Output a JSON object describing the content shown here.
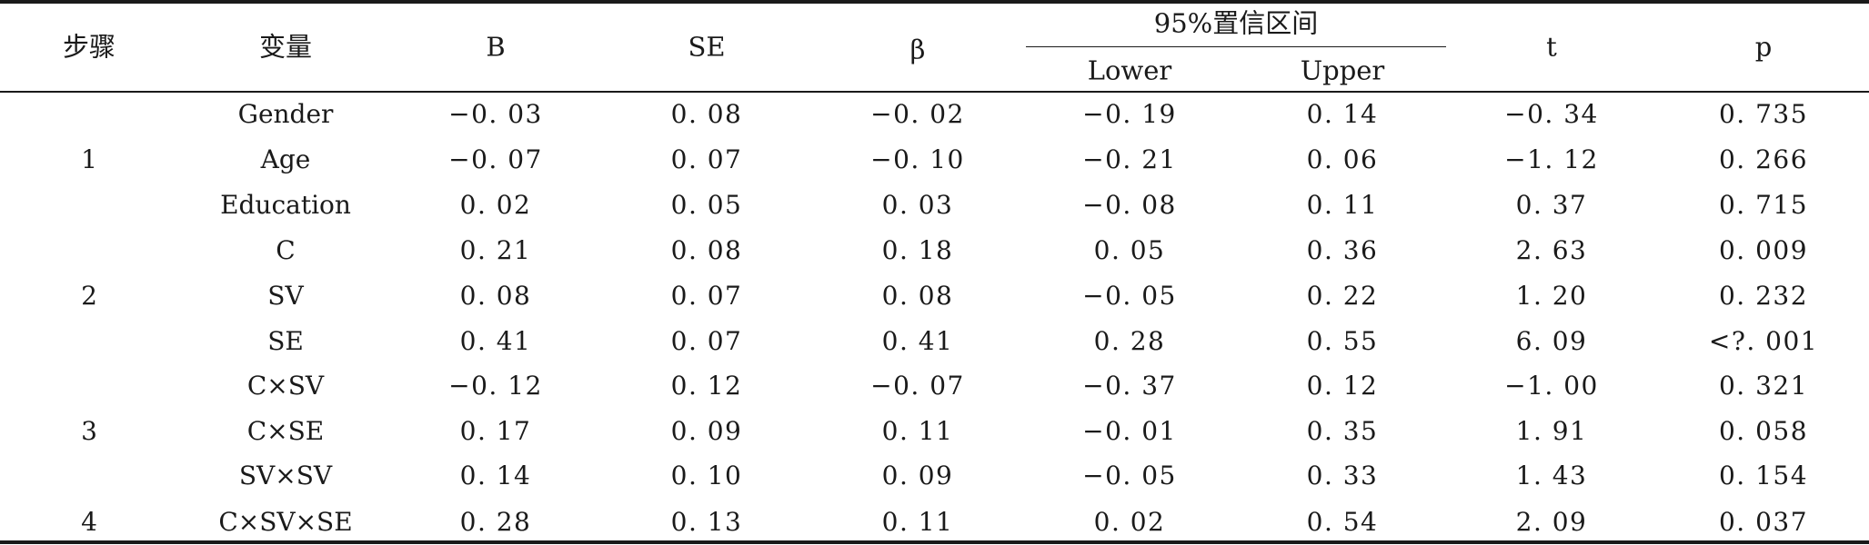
{
  "table": {
    "headers": {
      "step": "步骤",
      "variable": "变量",
      "B": "B",
      "SE": "SE",
      "beta": "β",
      "ci_group": "95%置信区间",
      "lower": "Lower",
      "upper": "Upper",
      "t": "t",
      "p": "p"
    },
    "steps": [
      {
        "label": "1"
      },
      {
        "label": "2"
      },
      {
        "label": "3"
      },
      {
        "label": "4"
      }
    ],
    "rows": [
      {
        "variable": "Gender",
        "B": "−0. 03",
        "SE": "0. 08",
        "beta": "−0. 02",
        "lower": "−0. 19",
        "upper": "0. 14",
        "t": "−0. 34",
        "p": "0. 735"
      },
      {
        "variable": "Age",
        "B": "−0. 07",
        "SE": "0. 07",
        "beta": "−0. 10",
        "lower": "−0. 21",
        "upper": "0. 06",
        "t": "−1. 12",
        "p": "0. 266"
      },
      {
        "variable": "Education",
        "B": "0. 02",
        "SE": "0. 05",
        "beta": "0. 03",
        "lower": "−0. 08",
        "upper": "0. 11",
        "t": "0. 37",
        "p": "0. 715"
      },
      {
        "variable": "C",
        "B": "0. 21",
        "SE": "0. 08",
        "beta": "0. 18",
        "lower": "0. 05",
        "upper": "0. 36",
        "t": "2. 63",
        "p": "0. 009"
      },
      {
        "variable": "SV",
        "B": "0. 08",
        "SE": "0. 07",
        "beta": "0. 08",
        "lower": "−0. 05",
        "upper": "0. 22",
        "t": "1. 20",
        "p": "0. 232"
      },
      {
        "variable": "SE",
        "B": "0. 41",
        "SE": "0. 07",
        "beta": "0. 41",
        "lower": "0. 28",
        "upper": "0. 55",
        "t": "6. 09",
        "p": "<?. 001"
      },
      {
        "variable": "C×SV",
        "B": "−0. 12",
        "SE": "0. 12",
        "beta": "−0. 07",
        "lower": "−0. 37",
        "upper": "0. 12",
        "t": "−1. 00",
        "p": "0. 321"
      },
      {
        "variable": "C×SE",
        "B": "0. 17",
        "SE": "0. 09",
        "beta": "0. 11",
        "lower": "−0. 01",
        "upper": "0. 35",
        "t": "1. 91",
        "p": "0. 058"
      },
      {
        "variable": "SV×SV",
        "B": "0. 14",
        "SE": "0. 10",
        "beta": "0. 09",
        "lower": "−0. 05",
        "upper": "0. 33",
        "t": "1. 43",
        "p": "0. 154"
      },
      {
        "variable": "C×SV×SE",
        "B": "0. 28",
        "SE": "0. 13",
        "beta": "0. 11",
        "lower": "0. 02",
        "upper": "0. 54",
        "t": "2. 09",
        "p": "0. 037"
      }
    ]
  }
}
